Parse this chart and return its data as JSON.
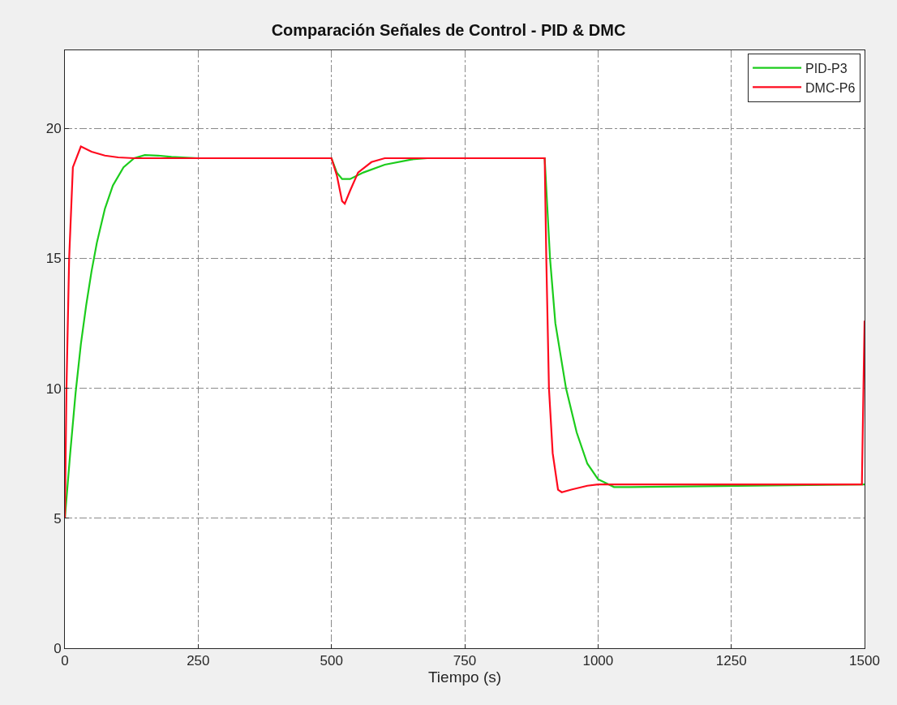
{
  "chart_data": {
    "type": "line",
    "title": "Comparación Señales de Control - PID & DMC",
    "xlabel": "Tiempo (s)",
    "xlim": [
      0,
      1500
    ],
    "xticks": [
      0,
      250,
      500,
      750,
      1000,
      1250,
      1500
    ],
    "ylim": [
      0,
      23
    ],
    "yticks": [
      0,
      5,
      10,
      15,
      20
    ],
    "grid": true,
    "legend": "top right",
    "line_style": "solid",
    "series": [
      {
        "name": "PID-P3",
        "color": "#1ccc1c",
        "x": [
          0,
          10,
          20,
          30,
          40,
          50,
          60,
          75,
          90,
          110,
          130,
          150,
          175,
          200,
          250,
          500,
          510,
          520,
          535,
          560,
          600,
          650,
          680,
          900,
          910,
          920,
          940,
          960,
          980,
          1000,
          1030,
          1060,
          1500
        ],
        "values": [
          5,
          7.5,
          9.8,
          11.7,
          13.2,
          14.5,
          15.6,
          16.9,
          17.8,
          18.5,
          18.85,
          18.97,
          18.95,
          18.9,
          18.85,
          18.85,
          18.3,
          18.05,
          18.05,
          18.3,
          18.6,
          18.8,
          18.85,
          18.85,
          15,
          12.5,
          10,
          8.3,
          7.1,
          6.5,
          6.2,
          6.2,
          6.3
        ]
      },
      {
        "name": "DMC-P6",
        "color": "#ff0a1e",
        "x": [
          0,
          3,
          8,
          15,
          30,
          50,
          75,
          100,
          130,
          500,
          510,
          520,
          525,
          535,
          550,
          575,
          600,
          900,
          903,
          908,
          915,
          925,
          932,
          950,
          980,
          1000,
          1495,
          1500
        ],
        "values": [
          5,
          10,
          15,
          18.5,
          19.3,
          19.1,
          18.95,
          18.88,
          18.85,
          18.85,
          18.2,
          17.2,
          17.1,
          17.6,
          18.3,
          18.7,
          18.85,
          18.85,
          15,
          10,
          7.5,
          6.1,
          6.0,
          6.1,
          6.25,
          6.3,
          6.3,
          12.6
        ]
      }
    ]
  }
}
